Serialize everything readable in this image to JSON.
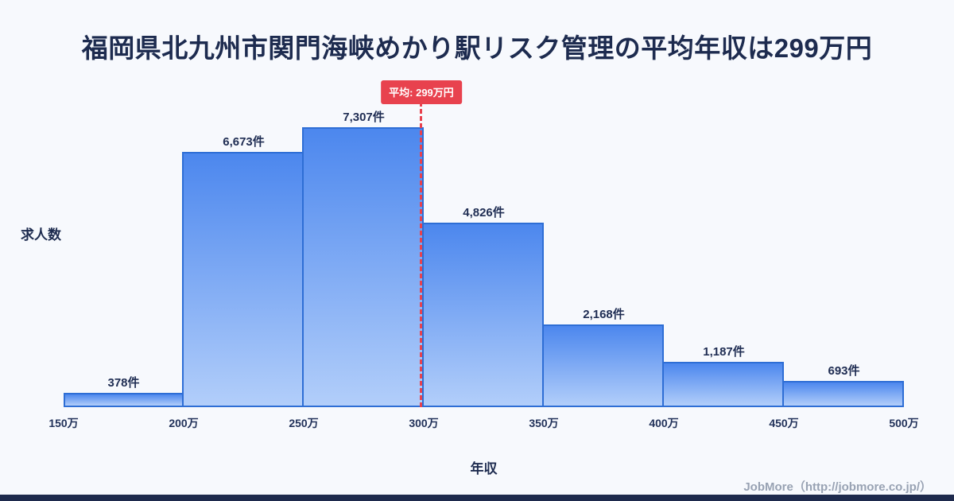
{
  "title": "福岡県北九州市関門海峡めかり駅リスク管理の平均年収は299万円",
  "chart_data": {
    "type": "bar",
    "subtype": "histogram",
    "categories": [
      "150万",
      "200万",
      "250万",
      "300万",
      "350万",
      "400万",
      "450万",
      "500万"
    ],
    "bins": [
      {
        "range": "150万-200万",
        "value": 378,
        "label": "378件"
      },
      {
        "range": "200万-250万",
        "value": 6673,
        "label": "6,673件"
      },
      {
        "range": "250万-300万",
        "value": 7307,
        "label": "7,307件"
      },
      {
        "range": "300万-350万",
        "value": 4826,
        "label": "4,826件"
      },
      {
        "range": "350万-400万",
        "value": 2168,
        "label": "2,168件"
      },
      {
        "range": "400万-450万",
        "value": 1187,
        "label": "1,187件"
      },
      {
        "range": "450万-500万",
        "value": 693,
        "label": "693件"
      }
    ],
    "values": [
      378,
      6673,
      7307,
      4826,
      2168,
      1187,
      693
    ],
    "value_labels": [
      "378件",
      "6,673件",
      "7,307件",
      "4,826件",
      "2,168件",
      "1,187件",
      "693件"
    ],
    "xlabel": "年収",
    "ylabel": "求人数",
    "x_min": 150,
    "x_max": 500,
    "grid": false,
    "legend": "none",
    "average_line": {
      "value": 299,
      "label": "平均: 299万円",
      "color": "#e8424e",
      "style": "dashed"
    },
    "colors": {
      "bar_gradient_top": "#4c87ee",
      "bar_gradient_bottom": "#b2cefa",
      "bar_border": "#2e6ed5",
      "title_text": "#1d2b4f",
      "background": "#f7f9fd",
      "accent_bar": "#1e2a4d",
      "footer_text": "#98a2b3"
    }
  },
  "footer": {
    "credit": "JobMore（http://jobmore.co.jp/）"
  }
}
